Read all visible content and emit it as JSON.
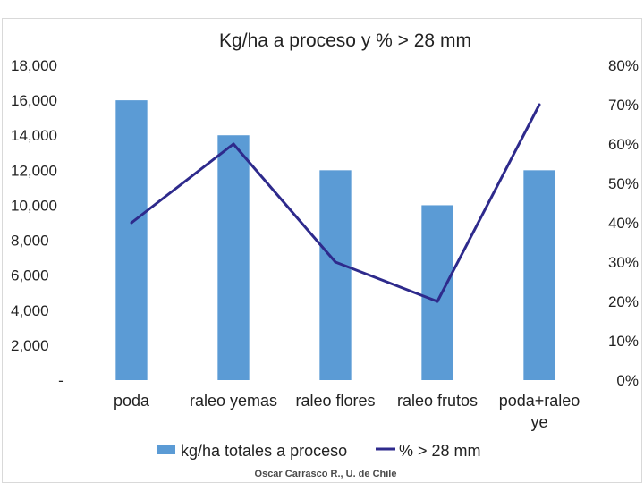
{
  "chart_data": {
    "type": "bar",
    "title": "Kg/ha a proceso y % > 28 mm",
    "categories": [
      "poda",
      "raleo yemas",
      "raleo flores",
      "raleo frutos",
      "poda+raleo ye"
    ],
    "category_lines": [
      [
        "poda"
      ],
      [
        "raleo yemas"
      ],
      [
        "raleo flores"
      ],
      [
        "raleo frutos"
      ],
      [
        "poda+raleo",
        "ye"
      ]
    ],
    "series": [
      {
        "name": "kg/ha totales a proceso",
        "type": "bar",
        "axis": "left",
        "values": [
          16000,
          14000,
          12000,
          10000,
          12000
        ],
        "color": "#5b9bd5"
      },
      {
        "name": "% > 28 mm",
        "type": "line",
        "axis": "right",
        "values": [
          40,
          60,
          30,
          20,
          70
        ],
        "color": "#2e2a8c"
      }
    ],
    "y_left": {
      "ylim": [
        0,
        18000
      ],
      "ticks": [
        "-",
        "2,000",
        "4,000",
        "6,000",
        "8,000",
        "10,000",
        "12,000",
        "14,000",
        "16,000",
        "18,000"
      ]
    },
    "y_right": {
      "ylim": [
        0,
        80
      ],
      "ticks": [
        "0%",
        "10%",
        "20%",
        "30%",
        "40%",
        "50%",
        "60%",
        "70%",
        "80%"
      ]
    },
    "grid": false,
    "legend_position": "bottom"
  },
  "footer": {
    "credit": "Oscar Carrasco R., U. de Chile"
  }
}
